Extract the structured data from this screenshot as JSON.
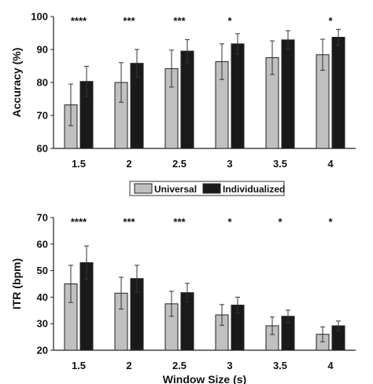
{
  "chart_data": [
    {
      "type": "bar",
      "categories": [
        "1.5",
        "2",
        "2.5",
        "3",
        "3.5",
        "4"
      ],
      "ylabel": "Accuracy (%)",
      "xlabel": "",
      "ylim": [
        60,
        100
      ],
      "yticks": [
        "60",
        "70",
        "80",
        "90",
        "100"
      ],
      "series": [
        {
          "name": "Universal",
          "color": "#c0c0c0",
          "values": [
            73.2,
            80.0,
            84.2,
            86.3,
            87.5,
            88.4
          ],
          "errors": [
            6.3,
            6.0,
            5.6,
            5.4,
            5.1,
            4.7
          ]
        },
        {
          "name": "Individualized",
          "color": "#1a1a1a",
          "values": [
            80.3,
            85.8,
            89.5,
            91.7,
            92.9,
            93.7
          ],
          "errors": [
            4.6,
            4.2,
            3.5,
            3.1,
            2.8,
            2.4
          ]
        }
      ],
      "significance": [
        "****",
        "***",
        "***",
        "*",
        "",
        "*"
      ]
    },
    {
      "type": "bar",
      "categories": [
        "1.5",
        "2",
        "2.5",
        "3",
        "3.5",
        "4"
      ],
      "ylabel": "ITR (bpm)",
      "xlabel": "Window Size (s)",
      "ylim": [
        20,
        70
      ],
      "yticks": [
        "20",
        "30",
        "40",
        "50",
        "60",
        "70"
      ],
      "series": [
        {
          "name": "Universal",
          "color": "#c0c0c0",
          "values": [
            45.0,
            41.5,
            37.5,
            33.3,
            29.2,
            26.0
          ],
          "errors": [
            7.0,
            6.0,
            4.7,
            3.9,
            3.3,
            2.8
          ]
        },
        {
          "name": "Individualized",
          "color": "#1a1a1a",
          "values": [
            53.0,
            47.0,
            41.7,
            37.0,
            32.8,
            29.2
          ],
          "errors": [
            6.3,
            5.0,
            3.5,
            3.0,
            2.3,
            1.8
          ]
        }
      ],
      "significance": [
        "****",
        "***",
        "***",
        "*",
        "*",
        "*"
      ]
    }
  ],
  "legend": {
    "items": [
      {
        "label": "Universal",
        "color": "#c0c0c0"
      },
      {
        "label": "Individualized",
        "color": "#1a1a1a"
      }
    ]
  }
}
